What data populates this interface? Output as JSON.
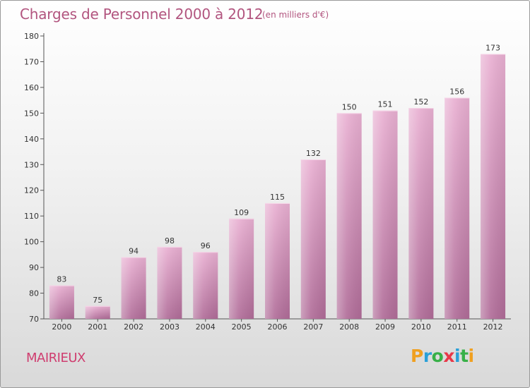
{
  "header": {
    "title": "Charges de Personnel 2000 à 2012",
    "subtitle": "(en milliers d'€)"
  },
  "footer": {
    "commune": "MAIRIEUX",
    "logo": {
      "text": "Proxiti",
      "letters": [
        {
          "ch": "P",
          "color": "#f0a020"
        },
        {
          "ch": "r",
          "color": "#2aa0d8"
        },
        {
          "ch": "o",
          "color": "#38b048"
        },
        {
          "ch": "x",
          "color": "#e83848"
        },
        {
          "ch": "i",
          "color": "#2aa0d8"
        },
        {
          "ch": "t",
          "color": "#38b048"
        },
        {
          "ch": "i",
          "color": "#f0a020"
        }
      ]
    }
  },
  "colors": {
    "bar_light": "#e9b0d2",
    "bar_dark": "#b06c98",
    "title": "#b2557f",
    "commune": "#cf3d6f"
  },
  "chart_data": {
    "type": "bar",
    "title": "Charges de Personnel 2000 à 2012",
    "subtitle": "(en milliers d'€)",
    "categories": [
      "2000",
      "2001",
      "2002",
      "2003",
      "2004",
      "2005",
      "2006",
      "2007",
      "2008",
      "2009",
      "2010",
      "2011",
      "2012"
    ],
    "values": [
      83,
      75,
      94,
      98,
      96,
      109,
      115,
      132,
      150,
      151,
      152,
      156,
      173
    ],
    "ylim": [
      70,
      180
    ],
    "yticks": [
      70,
      80,
      90,
      100,
      110,
      120,
      130,
      140,
      150,
      160,
      170,
      180
    ],
    "grid": false,
    "data_labels": true
  }
}
